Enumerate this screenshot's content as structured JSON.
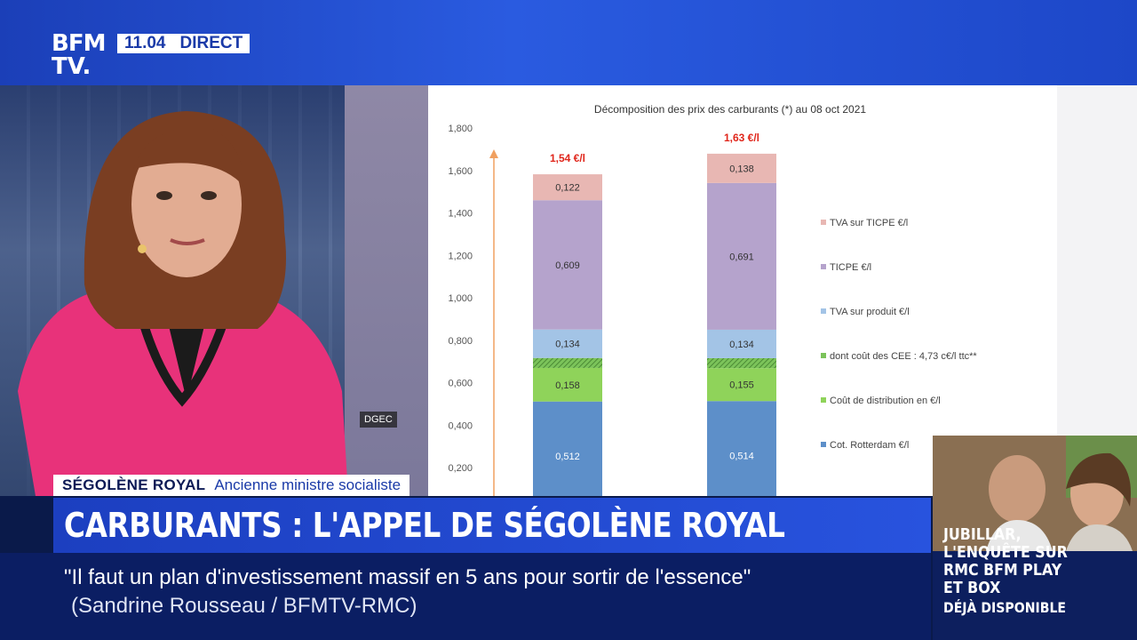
{
  "channel": {
    "logo_line1": "BFM",
    "logo_line2": "TV.",
    "time": "11.04",
    "live_label": "DIRECT"
  },
  "image_credit": "DGEC",
  "lower_third": {
    "name": "SÉGOLÈNE ROYAL",
    "role": "Ancienne ministre socialiste",
    "headline": "CARBURANTS : L'APPEL DE SÉGOLÈNE ROYAL",
    "quote": "\"Il faut un plan d'investissement massif en 5 ans pour sortir de l'essence\"",
    "source": "(Sandrine Rousseau / BFMTV-RMC)"
  },
  "promo": {
    "title_lines": [
      "JUBILLAR,",
      "L'ENQUÊTE SUR",
      "RMC BFM PLAY",
      "ET BOX"
    ],
    "subtitle": "DÉJÀ DISPONIBLE"
  },
  "colors": {
    "tva_ticpe": "#e8b7b3",
    "ticpe": "#b5a3cc",
    "tva_produit": "#a3c4e6",
    "cee": "#7bc35a",
    "distribution": "#8fd35a",
    "rotterdam": "#5d8fc9",
    "total_label": "#e0261b"
  },
  "chart_data": {
    "type": "bar",
    "stacked": true,
    "title": "Décomposition des prix des carburants (*) au 08 oct 2021",
    "y_ticks": [
      "1,800",
      "1,600",
      "1,400",
      "1,200",
      "1,000",
      "0,800",
      "0,600",
      "0,400",
      "0,200"
    ],
    "ylim": [
      0,
      1.8
    ],
    "totals": [
      "1,54 €/l",
      "1,63 €/l"
    ],
    "legend_position": "right",
    "series": [
      {
        "name": "Cot. Rotterdam €/l",
        "color_key": "rotterdam",
        "values": [
          0.512,
          0.514
        ],
        "labels": [
          "0,512",
          "0,514"
        ]
      },
      {
        "name": "Coût de distribution en €/l",
        "color_key": "distribution",
        "values": [
          0.158,
          0.155
        ],
        "labels": [
          "0,158",
          "0,155"
        ]
      },
      {
        "name": "dont coût des CEE : 4,73 c€/l ttc**",
        "color_key": "cee",
        "values": [
          0.047,
          0.047
        ],
        "labels": [
          "",
          ""
        ]
      },
      {
        "name": "TVA sur produit €/l",
        "color_key": "tva_produit",
        "values": [
          0.134,
          0.134
        ],
        "labels": [
          "0,134",
          "0,134"
        ]
      },
      {
        "name": "TICPE €/l",
        "color_key": "ticpe",
        "values": [
          0.609,
          0.691
        ],
        "labels": [
          "0,609",
          "0,691"
        ]
      },
      {
        "name": "TVA sur TICPE €/l",
        "color_key": "tva_ticpe",
        "values": [
          0.122,
          0.138
        ],
        "labels": [
          "0,122",
          "0,138"
        ]
      }
    ]
  }
}
